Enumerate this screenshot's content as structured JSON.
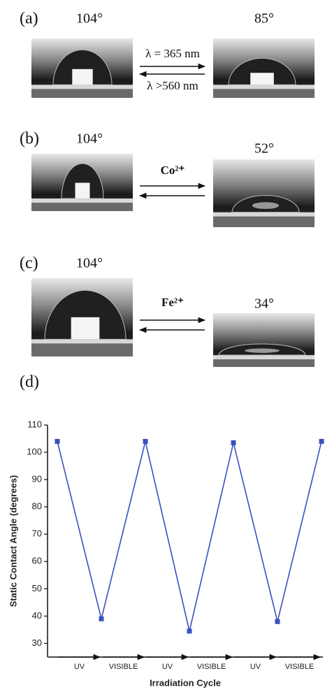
{
  "panels": [
    {
      "label": "(a)",
      "left_angle": "104°",
      "right_angle": "85°",
      "forward": "λ = 365 nm",
      "backward": "λ >560 nm"
    },
    {
      "label": "(b)",
      "left_angle": "104°",
      "right_angle": "52°",
      "forward": "Co²⁺"
    },
    {
      "label": "(c)",
      "left_angle": "104°",
      "right_angle": "34°",
      "forward": "Fe²⁺"
    }
  ],
  "chart_label": "(d)",
  "chart_data": {
    "type": "line",
    "y_label": "Static Contact Angle (degrees)",
    "x_label": "Irradiation Cycle",
    "categories": [
      null,
      null,
      null,
      null,
      null,
      null,
      null
    ],
    "values": [
      104,
      39,
      104,
      34.5,
      103.5,
      38,
      104
    ],
    "color": "#3a4fc0",
    "interval_labels": [
      "UV",
      "VISIBLE",
      "UV",
      "VISIBLE",
      "UV",
      "VISIBLE"
    ],
    "ylim": [
      25,
      110
    ],
    "yticks": [
      30,
      40,
      50,
      60,
      70,
      80,
      90,
      100,
      110
    ],
    "grid": false
  }
}
